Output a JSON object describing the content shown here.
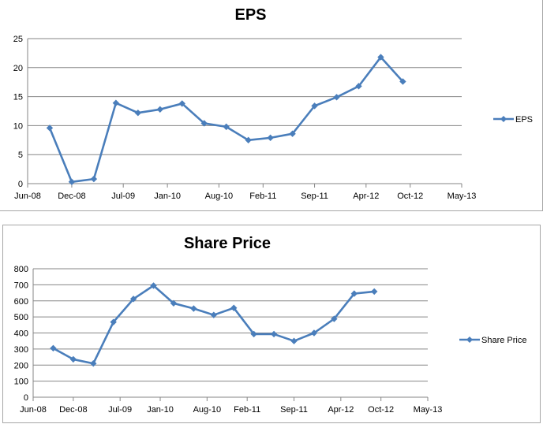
{
  "chart_data": [
    {
      "type": "line",
      "title": "EPS",
      "xlabel": "",
      "ylabel": "",
      "x_ticks": [
        "Jun-08",
        "Dec-08",
        "Jul-09",
        "Jan-10",
        "Aug-10",
        "Feb-11",
        "Sep-11",
        "Apr-12",
        "Oct-12",
        "May-13"
      ],
      "ylim": [
        0,
        25
      ],
      "y_ticks": [
        0,
        5,
        10,
        15,
        20,
        25
      ],
      "grid": true,
      "legend_position": "right",
      "color": "#4a7ebb",
      "series": [
        {
          "name": "EPS",
          "points": [
            {
              "x": "2008-09",
              "y": 9.6
            },
            {
              "x": "2008-12",
              "y": 0.3
            },
            {
              "x": "2009-03",
              "y": 0.8
            },
            {
              "x": "2009-06",
              "y": 13.9
            },
            {
              "x": "2009-09",
              "y": 12.2
            },
            {
              "x": "2009-12",
              "y": 12.8
            },
            {
              "x": "2010-03",
              "y": 13.8
            },
            {
              "x": "2010-06",
              "y": 10.4
            },
            {
              "x": "2010-09",
              "y": 9.8
            },
            {
              "x": "2010-12",
              "y": 7.5
            },
            {
              "x": "2011-03",
              "y": 7.9
            },
            {
              "x": "2011-06",
              "y": 8.6
            },
            {
              "x": "2011-09",
              "y": 13.4
            },
            {
              "x": "2011-12",
              "y": 14.9
            },
            {
              "x": "2012-03",
              "y": 16.8
            },
            {
              "x": "2012-06",
              "y": 21.8
            },
            {
              "x": "2012-09",
              "y": 17.6
            }
          ]
        }
      ]
    },
    {
      "type": "line",
      "title": "Share Price",
      "xlabel": "",
      "ylabel": "",
      "x_ticks": [
        "Jun-08",
        "Dec-08",
        "Jul-09",
        "Jan-10",
        "Aug-10",
        "Feb-11",
        "Sep-11",
        "Apr-12",
        "Oct-12",
        "May-13"
      ],
      "ylim": [
        0,
        800
      ],
      "y_ticks": [
        0,
        100,
        200,
        300,
        400,
        500,
        600,
        700,
        800
      ],
      "grid": true,
      "legend_position": "right",
      "color": "#4a7ebb",
      "series": [
        {
          "name": "Share Price",
          "points": [
            {
              "x": "2008-09",
              "y": 305
            },
            {
              "x": "2008-12",
              "y": 236
            },
            {
              "x": "2009-03",
              "y": 210
            },
            {
              "x": "2009-06",
              "y": 468
            },
            {
              "x": "2009-09",
              "y": 612
            },
            {
              "x": "2009-12",
              "y": 695
            },
            {
              "x": "2010-03",
              "y": 585
            },
            {
              "x": "2010-06",
              "y": 552
            },
            {
              "x": "2010-09",
              "y": 512
            },
            {
              "x": "2010-12",
              "y": 556
            },
            {
              "x": "2011-03",
              "y": 393
            },
            {
              "x": "2011-06",
              "y": 393
            },
            {
              "x": "2011-09",
              "y": 350
            },
            {
              "x": "2011-12",
              "y": 400
            },
            {
              "x": "2012-03",
              "y": 488
            },
            {
              "x": "2012-06",
              "y": 645
            },
            {
              "x": "2012-09",
              "y": 658
            }
          ]
        }
      ]
    }
  ]
}
